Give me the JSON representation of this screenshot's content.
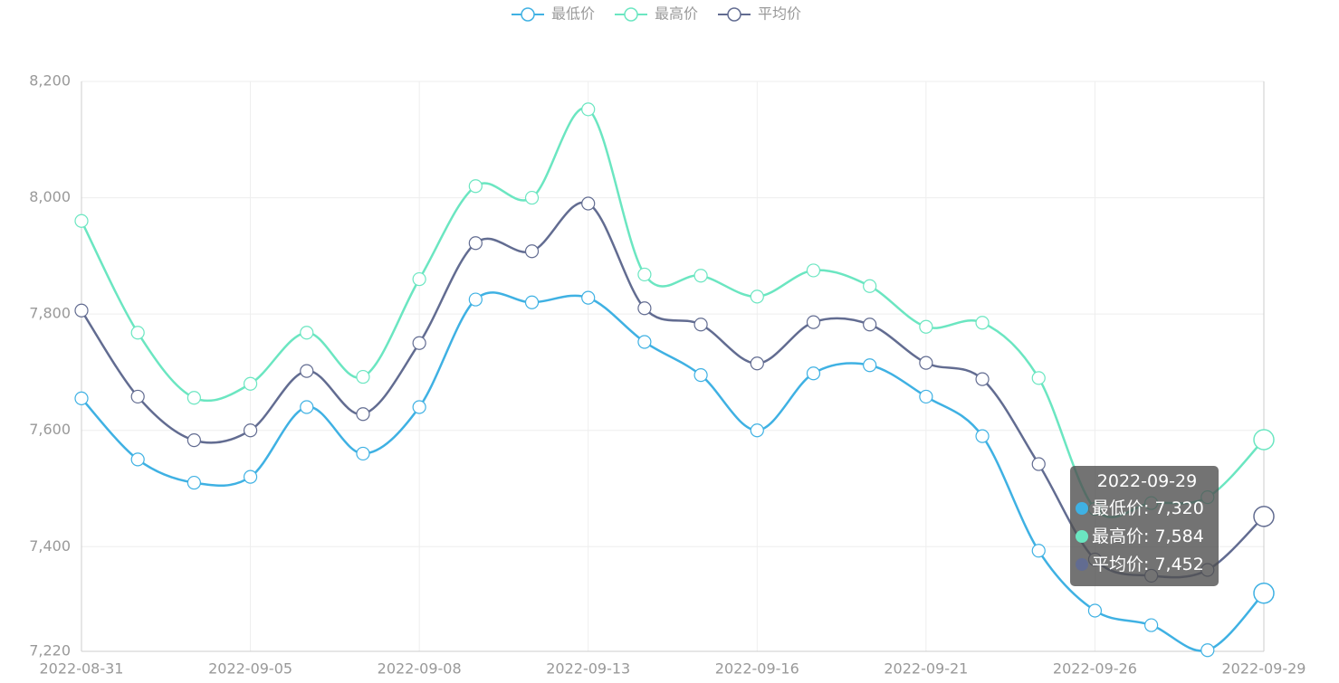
{
  "chart_data": {
    "type": "line",
    "categories": [
      "2022-08-31",
      null,
      null,
      "2022-09-05",
      null,
      null,
      "2022-09-08",
      null,
      null,
      "2022-09-13",
      null,
      null,
      "2022-09-16",
      null,
      null,
      "2022-09-21",
      null,
      null,
      "2022-09-26",
      null,
      null,
      "2022-09-29"
    ],
    "series": [
      {
        "name": "最低价",
        "color": "#3fb1e3",
        "values": [
          7655,
          7550,
          7510,
          7520,
          7640,
          7560,
          7640,
          7825,
          7820,
          7828,
          7752,
          7695,
          7600,
          7698,
          7712,
          7658,
          7590,
          7393,
          7290,
          7265,
          7222,
          7320
        ]
      },
      {
        "name": "最高价",
        "color": "#6be6c1",
        "values": [
          7960,
          7768,
          7656,
          7680,
          7768,
          7692,
          7860,
          8020,
          8000,
          8152,
          7868,
          7866,
          7830,
          7875,
          7848,
          7778,
          7785,
          7690,
          7465,
          7475,
          7485,
          7584
        ]
      },
      {
        "name": "平均价",
        "color": "#626c91",
        "values": [
          7806,
          7658,
          7583,
          7600,
          7702,
          7628,
          7750,
          7922,
          7908,
          7990,
          7810,
          7782,
          7715,
          7786,
          7782,
          7716,
          7688,
          7542,
          7378,
          7350,
          7360,
          7452
        ]
      }
    ],
    "ylim": [
      7220,
      8200
    ],
    "yticks": [
      {
        "value": 7220,
        "label": "7,220"
      },
      {
        "value": 7400,
        "label": "7,400"
      },
      {
        "value": 7600,
        "label": "7,600"
      },
      {
        "value": 7800,
        "label": "7,800"
      },
      {
        "value": 8000,
        "label": "8,000"
      },
      {
        "value": 8200,
        "label": "8,200"
      }
    ],
    "grid": true,
    "smooth": true,
    "legend": "top",
    "tooltip": {
      "rows": [
        "最低价: 7,320",
        "最高价: 7,584",
        "平均价: 7,452"
      ]
    }
  }
}
